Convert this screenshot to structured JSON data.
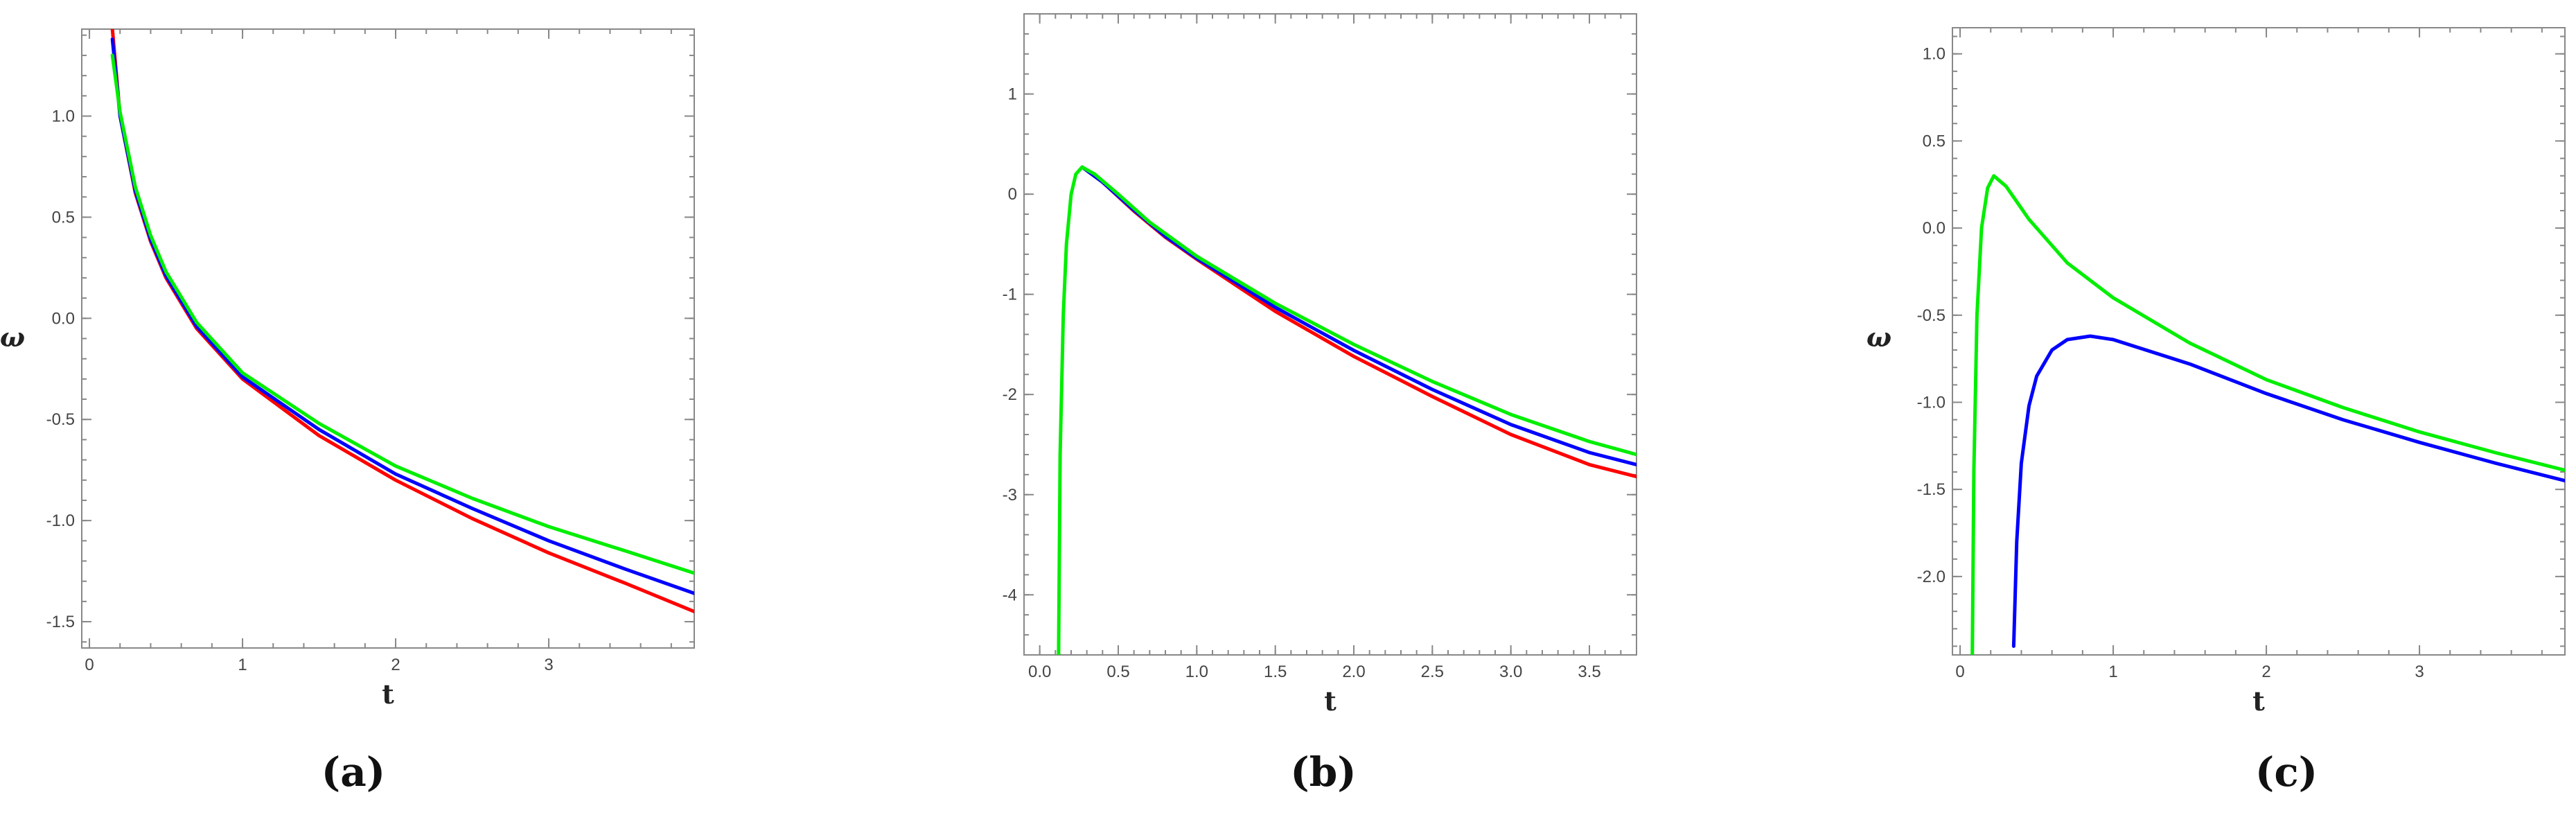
{
  "chart_data": [
    {
      "type": "line",
      "caption": "(a)",
      "xlabel": "t",
      "ylabel": "ω",
      "xlim": [
        -0.05,
        3.95
      ],
      "ylim": [
        -1.63,
        1.43
      ],
      "xticks": [
        0,
        1,
        2,
        3
      ],
      "xticklabels": [
        "0",
        "1",
        "2",
        "3"
      ],
      "yticks": [
        -1.5,
        -1.0,
        -0.5,
        0.0,
        0.5,
        1.0
      ],
      "yticklabels": [
        "-1.5",
        "-1.0",
        "-0.5",
        "0.0",
        "0.5",
        "1.0"
      ],
      "grid": false,
      "series": [
        {
          "color": "#ff0000",
          "x": [
            0.15,
            0.2,
            0.3,
            0.4,
            0.5,
            0.7,
            1.0,
            1.5,
            2.0,
            2.5,
            3.0,
            3.5,
            3.95
          ],
          "y": [
            1.43,
            1.0,
            0.62,
            0.38,
            0.2,
            -0.05,
            -0.3,
            -0.58,
            -0.8,
            -0.99,
            -1.16,
            -1.31,
            -1.45
          ]
        },
        {
          "color": "#0000ff",
          "x": [
            0.15,
            0.2,
            0.3,
            0.4,
            0.5,
            0.7,
            1.0,
            1.5,
            2.0,
            2.5,
            3.0,
            3.5,
            3.95
          ],
          "y": [
            1.38,
            1.0,
            0.63,
            0.39,
            0.21,
            -0.04,
            -0.29,
            -0.55,
            -0.77,
            -0.94,
            -1.1,
            -1.24,
            -1.36
          ]
        },
        {
          "color": "#00ee00",
          "x": [
            0.15,
            0.2,
            0.3,
            0.4,
            0.5,
            0.7,
            1.0,
            1.5,
            2.0,
            2.5,
            3.0,
            3.5,
            3.95
          ],
          "y": [
            1.3,
            1.02,
            0.65,
            0.41,
            0.23,
            -0.02,
            -0.27,
            -0.52,
            -0.73,
            -0.89,
            -1.03,
            -1.15,
            -1.26
          ]
        }
      ]
    },
    {
      "type": "line",
      "caption": "(b)",
      "xlabel": "t",
      "ylabel": "",
      "xlim": [
        -0.1,
        3.8
      ],
      "ylim": [
        -4.6,
        1.8
      ],
      "xticks": [
        0.0,
        0.5,
        1.0,
        1.5,
        2.0,
        2.5,
        3.0,
        3.5
      ],
      "xticklabels": [
        "0.0",
        "0.5",
        "1.0",
        "1.5",
        "2.0",
        "2.5",
        "3.0",
        "3.5"
      ],
      "yticks": [
        -4,
        -3,
        -2,
        -1,
        0,
        1
      ],
      "yticklabels": [
        "-4",
        "-3",
        "-2",
        "-1",
        "0",
        "1"
      ],
      "grid": false,
      "series": [
        {
          "color": "#ff0000",
          "x": [
            0.27,
            0.4,
            0.6,
            0.8,
            1.0,
            1.5,
            2.0,
            2.5,
            3.0,
            3.5,
            3.8
          ],
          "y": [
            0.27,
            0.12,
            -0.17,
            -0.43,
            -0.65,
            -1.17,
            -1.62,
            -2.02,
            -2.4,
            -2.7,
            -2.82
          ]
        },
        {
          "color": "#0000ff",
          "x": [
            0.27,
            0.4,
            0.6,
            0.8,
            1.0,
            1.5,
            2.0,
            2.5,
            3.0,
            3.5,
            3.8
          ],
          "y": [
            0.27,
            0.12,
            -0.16,
            -0.42,
            -0.64,
            -1.13,
            -1.56,
            -1.95,
            -2.3,
            -2.58,
            -2.7
          ]
        },
        {
          "color": "#00ee00",
          "x": [
            0.12,
            0.13,
            0.15,
            0.17,
            0.2,
            0.23,
            0.27,
            0.35,
            0.5,
            0.7,
            1.0,
            1.5,
            2.0,
            2.5,
            3.0,
            3.5,
            3.8
          ],
          "y": [
            -4.6,
            -2.6,
            -1.2,
            -0.5,
            0.0,
            0.2,
            0.27,
            0.2,
            0.0,
            -0.28,
            -0.62,
            -1.09,
            -1.5,
            -1.87,
            -2.2,
            -2.47,
            -2.6
          ]
        }
      ]
    },
    {
      "type": "line",
      "caption": "(c)",
      "xlabel": "t",
      "ylabel": "ω",
      "xlim": [
        -0.05,
        3.95
      ],
      "ylim": [
        -2.45,
        1.15
      ],
      "xticks": [
        0,
        1,
        2,
        3
      ],
      "xticklabels": [
        "0",
        "1",
        "2",
        "3"
      ],
      "yticks": [
        -2.0,
        -1.5,
        -1.0,
        -0.5,
        0.0,
        0.5,
        1.0
      ],
      "yticklabels": [
        "-2.0",
        "-1.5",
        "-1.0",
        "-0.5",
        "0.0",
        "0.5",
        "1.0"
      ],
      "grid": false,
      "series": [
        {
          "color": "#0000ff",
          "x": [
            0.35,
            0.37,
            0.4,
            0.45,
            0.5,
            0.6,
            0.7,
            0.85,
            1.0,
            1.5,
            2.0,
            2.5,
            3.0,
            3.5,
            3.95
          ],
          "y": [
            -2.4,
            -1.8,
            -1.35,
            -1.02,
            -0.85,
            -0.7,
            -0.64,
            -0.62,
            -0.64,
            -0.78,
            -0.95,
            -1.1,
            -1.23,
            -1.35,
            -1.45
          ]
        },
        {
          "color": "#00ee00",
          "x": [
            0.08,
            0.09,
            0.11,
            0.14,
            0.18,
            0.22,
            0.3,
            0.45,
            0.7,
            1.0,
            1.5,
            2.0,
            2.5,
            3.0,
            3.5,
            3.95
          ],
          "y": [
            -2.45,
            -1.4,
            -0.5,
            0.0,
            0.23,
            0.3,
            0.24,
            0.05,
            -0.2,
            -0.4,
            -0.66,
            -0.87,
            -1.03,
            -1.17,
            -1.29,
            -1.39
          ]
        }
      ]
    }
  ]
}
